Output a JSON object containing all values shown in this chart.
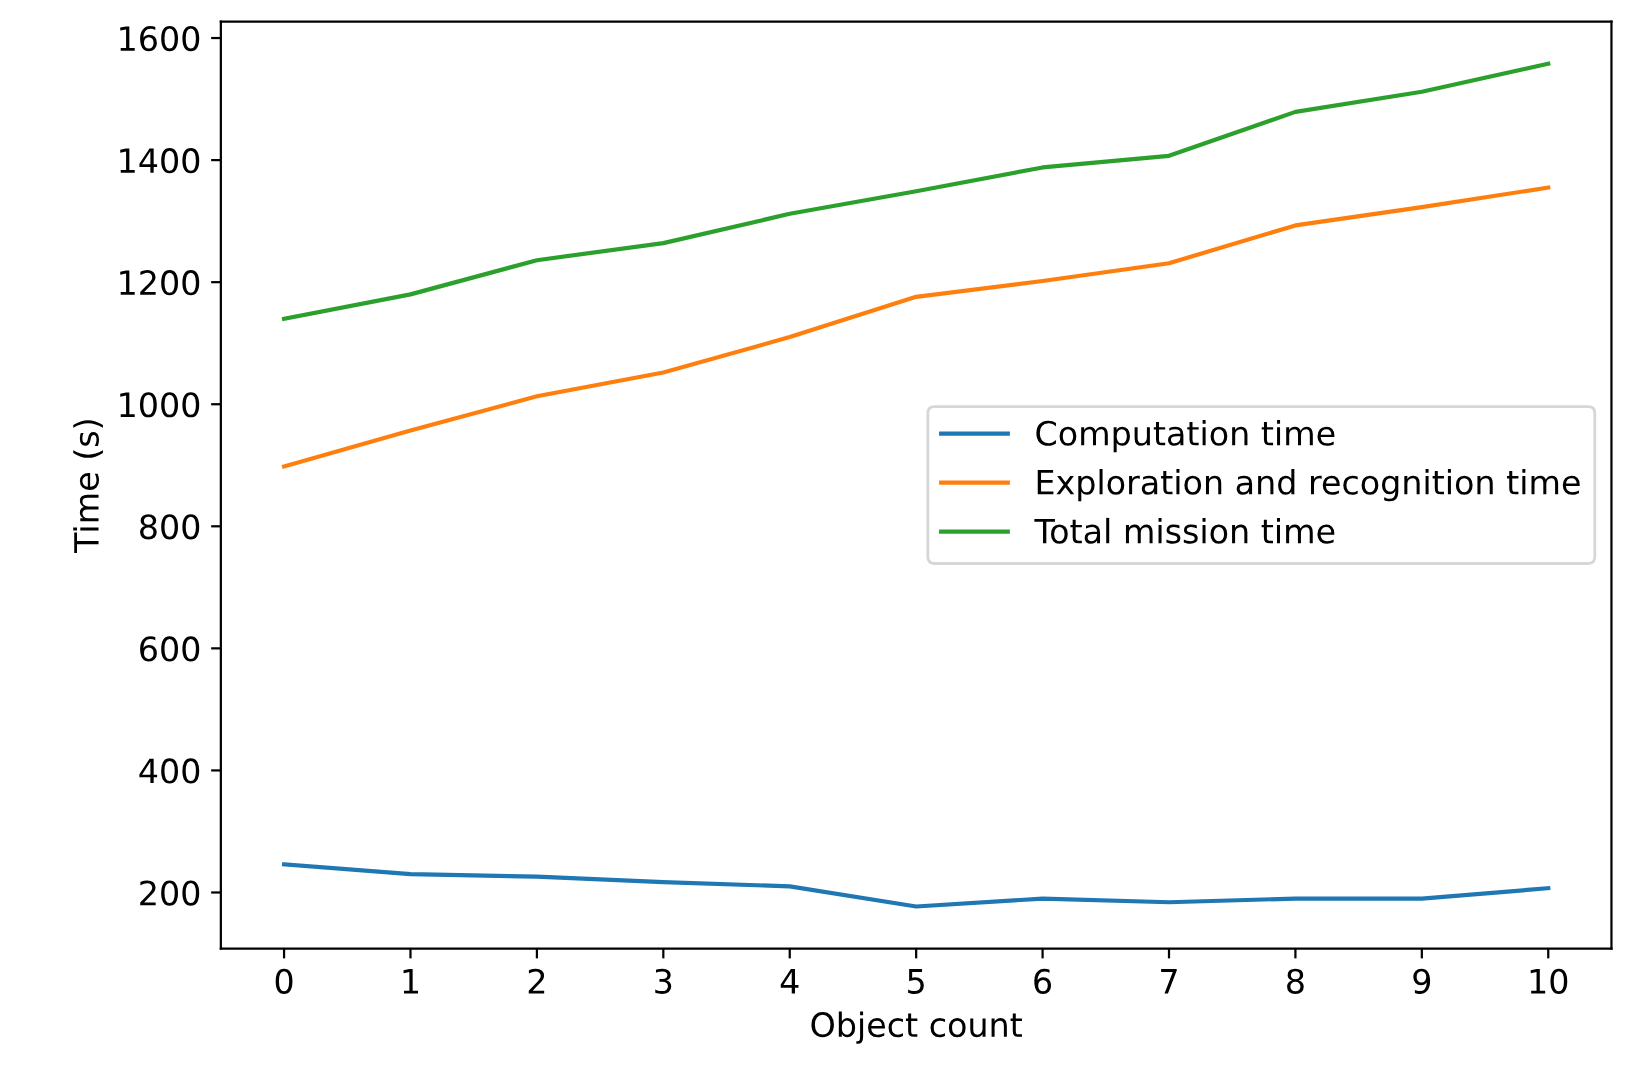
{
  "chart_data": {
    "type": "line",
    "xlabel": "Object count",
    "ylabel": "Time (s)",
    "x": [
      0,
      1,
      2,
      3,
      4,
      5,
      6,
      7,
      8,
      9,
      10
    ],
    "series": [
      {
        "name": "Computation time",
        "color": "#1f77b4",
        "values": [
          246,
          230,
          226,
          217,
          210,
          177,
          190,
          184,
          190,
          190,
          207
        ]
      },
      {
        "name": "Exploration and recognition time",
        "color": "#ff7f0e",
        "values": [
          898,
          957,
          1013,
          1052,
          1110,
          1176,
          1202,
          1231,
          1293,
          1323,
          1355
        ]
      },
      {
        "name": "Total mission time",
        "color": "#2ca02c",
        "values": [
          1140,
          1180,
          1236,
          1264,
          1312,
          1349,
          1388,
          1407,
          1479,
          1512,
          1558
        ]
      }
    ],
    "xlim": [
      -0.5,
      10.5
    ],
    "xticks": [
      0,
      1,
      2,
      3,
      4,
      5,
      6,
      7,
      8,
      9,
      10
    ],
    "ylim": [
      108,
      1627
    ],
    "yticks": [
      200,
      400,
      600,
      800,
      1000,
      1200,
      1400,
      1600
    ],
    "legend": "center right",
    "grid": false
  }
}
